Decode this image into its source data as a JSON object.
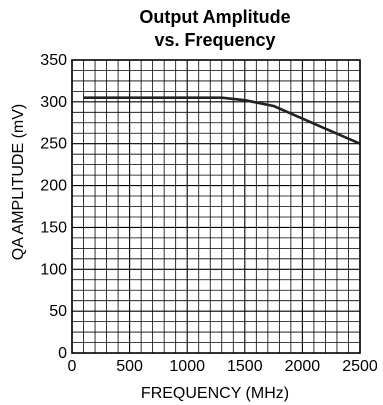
{
  "chart_data": {
    "type": "line",
    "title_lines": [
      "Output Amplitude",
      "vs. Frequency"
    ],
    "xlabel": "FREQUENCY (MHz)",
    "ylabel": "QA AMPLITUDE (mV)",
    "xlim": [
      0,
      2500
    ],
    "ylim": [
      0,
      350
    ],
    "x_ticks": [
      0,
      500,
      1000,
      1500,
      2000,
      2500
    ],
    "y_ticks": [
      0,
      50,
      100,
      150,
      200,
      250,
      300,
      350
    ],
    "minor_x_step": 100,
    "minor_y_step": 12.5,
    "grid": true,
    "legend": "none",
    "series": [
      {
        "x": [
          100,
          500,
          1000,
          1300,
          1500,
          1750,
          2000,
          2250,
          2500
        ],
        "y": [
          305,
          305,
          305,
          305,
          302,
          295,
          280,
          265,
          250
        ]
      }
    ],
    "line_color": "#222222",
    "grid_color": "#000000"
  }
}
